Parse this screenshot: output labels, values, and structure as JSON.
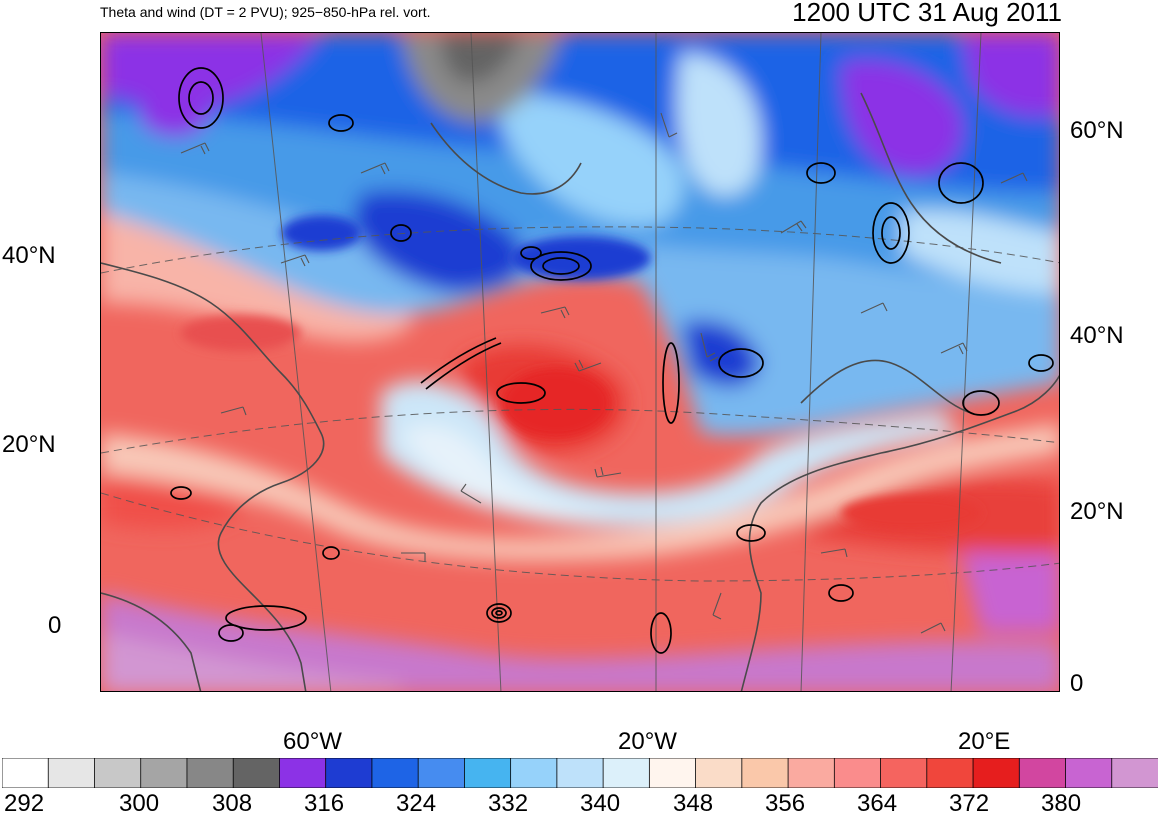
{
  "header": {
    "left_title": "Theta and wind (DT = 2 PVU); 925−850-hPa rel. vort.",
    "right_title": "1200 UTC 31 Aug 2011"
  },
  "axes": {
    "lat_left": [
      "40°N",
      "20°N",
      "0"
    ],
    "lat_right": [
      "60°N",
      "40°N",
      "20°N",
      "0"
    ],
    "lon_bottom": [
      "60°W",
      "20°W",
      "20°E"
    ]
  },
  "colorbar": {
    "labels": [
      "292",
      "300",
      "308",
      "316",
      "324",
      "332",
      "340",
      "348",
      "356",
      "364",
      "372",
      "380"
    ],
    "colors": [
      "#ffffff",
      "#e6e6e6",
      "#c8c8c8",
      "#a5a5a5",
      "#878787",
      "#646464",
      "#8c32e6",
      "#1e3cd2",
      "#1e64e6",
      "#468cf0",
      "#46b4f0",
      "#96d2fa",
      "#bee1fa",
      "#dcf0fa",
      "#fff5ee",
      "#fadcc8",
      "#fac8aa",
      "#faaaa0",
      "#fa8c8c",
      "#f5645f",
      "#f0463c",
      "#e61e1e",
      "#d246a0",
      "#c864d2",
      "#d296d2"
    ]
  },
  "colors": {
    "theta_cold": "#1e3cd2",
    "theta_warm": "#f0463c",
    "coast": "#555555",
    "vorticity_contour": "#000000"
  }
}
